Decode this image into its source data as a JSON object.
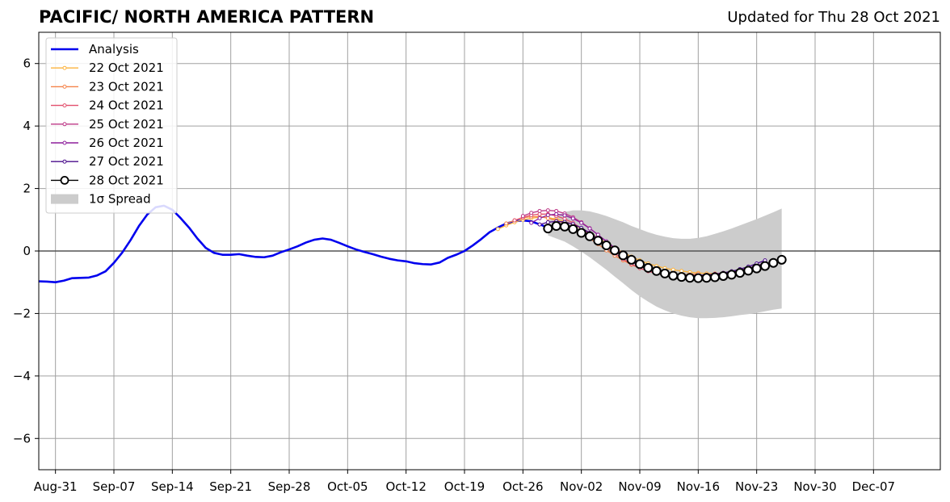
{
  "header": {
    "title": "PACIFIC/ NORTH AMERICA PATTERN",
    "updated": "Updated for Thu 28 Oct 2021"
  },
  "chart_data": {
    "type": "line",
    "xlabel": "",
    "ylabel": "",
    "xlim": [
      "2021-08-29",
      "2021-12-15"
    ],
    "ylim": [
      -7,
      7
    ],
    "grid": true,
    "legend_position": "top-left",
    "x_ticks": [
      {
        "date": "2021-08-31",
        "label": "Aug-31"
      },
      {
        "date": "2021-09-07",
        "label": "Sep-07"
      },
      {
        "date": "2021-09-14",
        "label": "Sep-14"
      },
      {
        "date": "2021-09-21",
        "label": "Sep-21"
      },
      {
        "date": "2021-09-28",
        "label": "Sep-28"
      },
      {
        "date": "2021-10-05",
        "label": "Oct-05"
      },
      {
        "date": "2021-10-12",
        "label": "Oct-12"
      },
      {
        "date": "2021-10-19",
        "label": "Oct-19"
      },
      {
        "date": "2021-10-26",
        "label": "Oct-26"
      },
      {
        "date": "2021-11-02",
        "label": "Nov-02"
      },
      {
        "date": "2021-11-09",
        "label": "Nov-09"
      },
      {
        "date": "2021-11-16",
        "label": "Nov-16"
      },
      {
        "date": "2021-11-23",
        "label": "Nov-23"
      },
      {
        "date": "2021-11-30",
        "label": "Nov-30"
      },
      {
        "date": "2021-12-07",
        "label": "Dec-07"
      }
    ],
    "y_ticks": [
      {
        "value": 6,
        "label": "6"
      },
      {
        "value": 4,
        "label": "4"
      },
      {
        "value": 2,
        "label": "2"
      },
      {
        "value": 0,
        "label": "0"
      },
      {
        "value": -2,
        "label": "−2"
      },
      {
        "value": -4,
        "label": "−4"
      },
      {
        "value": -6,
        "label": "−6"
      }
    ],
    "analysis": {
      "name": "Analysis",
      "color": "#0000ee",
      "start": "2021-08-29",
      "values": [
        -0.97,
        -0.98,
        -1.0,
        -0.95,
        -0.87,
        -0.86,
        -0.85,
        -0.78,
        -0.65,
        -0.38,
        -0.05,
        0.35,
        0.8,
        1.17,
        1.4,
        1.45,
        1.32,
        1.05,
        0.75,
        0.4,
        0.1,
        -0.06,
        -0.12,
        -0.12,
        -0.1,
        -0.15,
        -0.19,
        -0.2,
        -0.15,
        -0.04,
        0.05,
        0.15,
        0.27,
        0.36,
        0.4,
        0.36,
        0.26,
        0.15,
        0.05,
        -0.03,
        -0.1,
        -0.18,
        -0.25,
        -0.3,
        -0.33,
        -0.39,
        -0.42,
        -0.43,
        -0.37,
        -0.22,
        -0.12,
        0.0,
        0.18,
        0.38,
        0.6,
        0.75,
        0.88,
        0.95,
        0.98,
        0.95,
        0.85,
        0.75
      ]
    },
    "forecasts": [
      {
        "name": "22 Oct 2021",
        "color": "#fcb33d",
        "start": "2021-10-23",
        "values": [
          0.7,
          0.82,
          0.92,
          1.0,
          1.05,
          1.08,
          1.07,
          1.02,
          0.95,
          0.85,
          0.72,
          0.58,
          0.42,
          0.25,
          0.08,
          -0.05,
          -0.18,
          -0.3,
          -0.4,
          -0.48,
          -0.55,
          -0.6,
          -0.64,
          -0.68,
          -0.7,
          -0.72,
          -0.72
        ]
      },
      {
        "name": "23 Oct 2021",
        "color": "#f5834a",
        "start": "2021-10-24",
        "values": [
          0.88,
          0.98,
          1.06,
          1.1,
          1.1,
          1.05,
          0.98,
          0.88,
          0.75,
          0.58,
          0.4,
          0.22,
          0.02,
          -0.15,
          -0.3,
          -0.44,
          -0.55,
          -0.63,
          -0.69,
          -0.73,
          -0.75,
          -0.76,
          -0.75,
          -0.73
        ]
      },
      {
        "name": "24 Oct 2021",
        "color": "#e24f6c",
        "start": "2021-10-25",
        "values": [
          0.98,
          1.08,
          1.15,
          1.18,
          1.18,
          1.12,
          1.03,
          0.9,
          0.73,
          0.54,
          0.33,
          0.12,
          -0.08,
          -0.26,
          -0.42,
          -0.55,
          -0.65,
          -0.72,
          -0.76,
          -0.78,
          -0.79,
          -0.79,
          -0.78,
          -0.76,
          -0.73,
          -0.7,
          -0.66,
          -0.62,
          -0.57,
          -0.52,
          -0.46
        ]
      },
      {
        "name": "25 Oct 2021",
        "color": "#bd3887",
        "start": "2021-10-26",
        "values": [
          1.12,
          1.22,
          1.28,
          1.3,
          1.28,
          1.2,
          1.08,
          0.92,
          0.73,
          0.52,
          0.3,
          0.08,
          -0.12,
          -0.3,
          -0.45,
          -0.57,
          -0.66,
          -0.72,
          -0.76,
          -0.78,
          -0.79,
          -0.79,
          -0.78,
          -0.76,
          -0.72,
          -0.67,
          -0.62,
          -0.56,
          -0.5,
          -0.42
        ]
      },
      {
        "name": "26 Oct 2021",
        "color": "#8d1f9c",
        "start": "2021-10-27",
        "values": [
          0.9,
          1.05,
          1.15,
          1.18,
          1.14,
          1.04,
          0.9,
          0.72,
          0.52,
          0.31,
          0.1,
          -0.1,
          -0.28,
          -0.43,
          -0.55,
          -0.64,
          -0.7,
          -0.74,
          -0.77,
          -0.78,
          -0.78,
          -0.77,
          -0.75,
          -0.72,
          -0.68,
          -0.62,
          -0.55,
          -0.47,
          -0.38
        ]
      },
      {
        "name": "27 Oct 2021",
        "color": "#4a0c8b",
        "start": "2021-10-28",
        "values": [
          0.85,
          0.92,
          0.95,
          0.93,
          0.86,
          0.74,
          0.58,
          0.4,
          0.2,
          0.0,
          -0.18,
          -0.34,
          -0.48,
          -0.59,
          -0.68,
          -0.74,
          -0.78,
          -0.8,
          -0.8,
          -0.79,
          -0.77,
          -0.74,
          -0.7,
          -0.65,
          -0.58,
          -0.5,
          -0.4,
          -0.3
        ]
      },
      {
        "name": "28 Oct 2021",
        "color": "#000000",
        "start": "2021-10-29",
        "values": [
          0.72,
          0.8,
          0.78,
          0.7,
          0.58,
          0.47,
          0.33,
          0.18,
          0.02,
          -0.14,
          -0.28,
          -0.42,
          -0.54,
          -0.64,
          -0.72,
          -0.79,
          -0.83,
          -0.86,
          -0.87,
          -0.86,
          -0.84,
          -0.8,
          -0.76,
          -0.7,
          -0.63,
          -0.56,
          -0.48,
          -0.38,
          -0.28
        ]
      }
    ],
    "spread": {
      "name": "1σ Spread",
      "color": "#cccccc",
      "start": "2021-10-29",
      "upper": [
        0.95,
        1.12,
        1.25,
        1.3,
        1.3,
        1.27,
        1.2,
        1.12,
        1.02,
        0.92,
        0.8,
        0.7,
        0.6,
        0.52,
        0.46,
        0.41,
        0.39,
        0.39,
        0.42,
        0.47,
        0.55,
        0.63,
        0.72,
        0.82,
        0.92,
        1.02,
        1.13,
        1.24,
        1.36
      ],
      "lower": [
        0.5,
        0.4,
        0.3,
        0.15,
        -0.02,
        -0.2,
        -0.4,
        -0.6,
        -0.82,
        -1.03,
        -1.25,
        -1.45,
        -1.62,
        -1.78,
        -1.9,
        -2.0,
        -2.07,
        -2.12,
        -2.15,
        -2.15,
        -2.14,
        -2.12,
        -2.09,
        -2.05,
        -2.02,
        -1.98,
        -1.93,
        -1.88,
        -1.84
      ]
    },
    "legend": {
      "entries": [
        "Analysis",
        "22 Oct 2021",
        "23 Oct 2021",
        "24 Oct 2021",
        "25 Oct 2021",
        "26 Oct 2021",
        "27 Oct 2021",
        "28 Oct 2021",
        "1σ Spread"
      ]
    }
  }
}
